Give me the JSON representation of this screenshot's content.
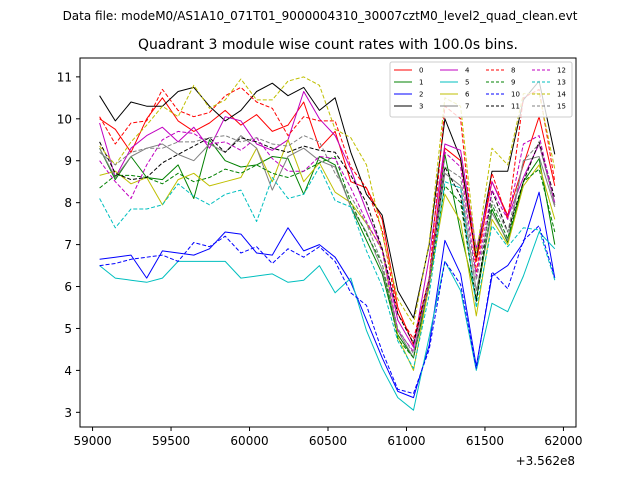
{
  "header": "Data file: modeM0/AS1A10_071T01_9000004310_30007cztM0_level2_quad_clean.evt",
  "chart_data": {
    "type": "line",
    "title": "Quadrant 3 module wise count rates with 100.0s bins.",
    "xlabel": "",
    "ylabel": "",
    "x_offset_label": "+3.562e8",
    "xlim": [
      58920,
      62080
    ],
    "ylim": [
      2.65,
      11.45
    ],
    "xticks": [
      59000,
      59500,
      60000,
      60500,
      61000,
      61500,
      62000
    ],
    "xtick_labels": [
      "59000",
      "59500",
      "60000",
      "60500",
      "61000",
      "61500",
      "62000"
    ],
    "yticks": [
      3,
      4,
      5,
      6,
      7,
      8,
      9,
      10,
      11
    ],
    "ytick_labels": [
      "3",
      "4",
      "5",
      "6",
      "7",
      "8",
      "9",
      "10",
      "11"
    ],
    "x": [
      59045,
      59145,
      59245,
      59345,
      59445,
      59545,
      59645,
      59745,
      59845,
      59945,
      60045,
      60145,
      60245,
      60345,
      60445,
      60545,
      60645,
      60745,
      60845,
      60945,
      61045,
      61145,
      61245,
      61345,
      61445,
      61545,
      61645,
      61745,
      61845,
      61945
    ],
    "legend_position": "top-right",
    "series": [
      {
        "name": "0",
        "color": "#ff0000",
        "dash": "solid",
        "values": [
          10.0,
          9.75,
          9.2,
          10.0,
          10.5,
          9.95,
          9.7,
          9.9,
          10.2,
          9.85,
          10.1,
          9.7,
          9.85,
          10.4,
          9.3,
          9.7,
          8.5,
          8.35,
          7.6,
          5.5,
          4.6,
          6.2,
          9.3,
          9.0,
          6.6,
          8.5,
          7.7,
          8.9,
          10.05,
          8.4
        ]
      },
      {
        "name": "1",
        "color": "#008000",
        "dash": "solid",
        "values": [
          9.3,
          8.55,
          9.1,
          8.6,
          8.55,
          8.9,
          8.1,
          9.5,
          9.0,
          8.85,
          8.9,
          9.1,
          9.05,
          8.2,
          9.1,
          8.9,
          7.9,
          7.1,
          6.3,
          4.85,
          4.3,
          6.0,
          9.15,
          7.3,
          5.7,
          7.85,
          7.05,
          8.5,
          9.05,
          7.0
        ]
      },
      {
        "name": "2",
        "color": "#0000ff",
        "dash": "solid",
        "values": [
          6.65,
          6.7,
          6.75,
          6.2,
          6.85,
          6.8,
          6.75,
          6.9,
          7.3,
          7.25,
          6.8,
          6.75,
          7.4,
          6.85,
          7.0,
          6.7,
          6.1,
          5.2,
          4.3,
          3.5,
          3.35,
          4.6,
          7.1,
          6.3,
          4.1,
          6.25,
          6.5,
          7.05,
          8.25,
          6.2
        ]
      },
      {
        "name": "3",
        "color": "#000000",
        "dash": "solid",
        "values": [
          10.55,
          9.95,
          10.4,
          10.3,
          10.3,
          10.65,
          10.75,
          10.3,
          9.95,
          10.2,
          10.65,
          10.85,
          10.55,
          10.75,
          10.2,
          10.5,
          9.2,
          8.2,
          7.7,
          5.9,
          5.25,
          7.0,
          10.0,
          9.05,
          6.7,
          8.75,
          8.75,
          10.45,
          10.9,
          9.15
        ]
      },
      {
        "name": "4",
        "color": "#c000c0",
        "dash": "solid",
        "values": [
          9.9,
          8.6,
          9.3,
          9.6,
          9.8,
          9.45,
          9.8,
          9.3,
          10.05,
          9.95,
          9.4,
          9.25,
          9.5,
          10.65,
          10.0,
          9.6,
          8.8,
          7.8,
          6.9,
          5.2,
          4.55,
          6.7,
          9.4,
          9.25,
          6.9,
          8.5,
          7.65,
          8.6,
          9.4,
          8.0
        ]
      },
      {
        "name": "5",
        "color": "#00bfbf",
        "dash": "solid",
        "values": [
          6.5,
          6.2,
          6.15,
          6.1,
          6.2,
          6.6,
          6.6,
          6.6,
          6.6,
          6.2,
          6.25,
          6.3,
          6.1,
          6.15,
          6.5,
          5.85,
          6.2,
          4.95,
          4.05,
          3.35,
          3.05,
          4.8,
          6.6,
          5.9,
          4.0,
          5.6,
          5.4,
          6.25,
          7.3,
          6.9
        ]
      },
      {
        "name": "6",
        "color": "#bfbf00",
        "dash": "solid",
        "values": [
          8.65,
          8.75,
          8.45,
          8.6,
          7.95,
          8.55,
          8.7,
          8.4,
          8.5,
          8.6,
          9.3,
          8.5,
          9.5,
          8.5,
          8.95,
          8.25,
          8.0,
          7.5,
          6.9,
          4.8,
          4.0,
          6.05,
          8.2,
          7.55,
          5.3,
          7.6,
          7.0,
          8.4,
          8.9,
          7.6
        ]
      },
      {
        "name": "7",
        "color": "#808080",
        "dash": "solid",
        "values": [
          9.3,
          8.6,
          9.1,
          9.3,
          9.4,
          9.15,
          9.0,
          9.4,
          9.2,
          9.6,
          9.3,
          8.3,
          9.1,
          9.3,
          9.0,
          8.85,
          7.9,
          7.3,
          6.4,
          4.95,
          4.3,
          6.15,
          8.7,
          8.4,
          5.9,
          7.75,
          7.1,
          9.0,
          9.1,
          7.9
        ]
      },
      {
        "name": "8",
        "color": "#ff0000",
        "dash": "dashed",
        "values": [
          10.05,
          9.4,
          9.9,
          9.95,
          10.7,
          10.2,
          10.05,
          10.15,
          10.55,
          10.75,
          10.4,
          10.25,
          9.6,
          10.05,
          9.95,
          9.95,
          8.85,
          8.35,
          7.35,
          5.35,
          4.75,
          6.2,
          10.3,
          10.0,
          6.35,
          8.7,
          7.6,
          10.5,
          10.7,
          8.5
        ]
      },
      {
        "name": "9",
        "color": "#008000",
        "dash": "dashed",
        "values": [
          8.35,
          8.65,
          8.65,
          8.6,
          8.45,
          8.7,
          8.5,
          8.6,
          8.8,
          8.7,
          8.9,
          8.7,
          8.6,
          8.75,
          8.95,
          9.1,
          8.0,
          7.25,
          6.55,
          4.75,
          4.3,
          6.1,
          8.4,
          8.0,
          5.65,
          7.95,
          7.15,
          8.5,
          8.8,
          7.3
        ]
      },
      {
        "name": "10",
        "color": "#0000ff",
        "dash": "dashed",
        "values": [
          6.5,
          6.55,
          6.65,
          6.7,
          6.75,
          6.6,
          7.05,
          6.95,
          7.2,
          6.8,
          6.95,
          6.55,
          6.9,
          6.7,
          6.95,
          6.6,
          5.85,
          5.55,
          4.45,
          3.55,
          3.45,
          4.5,
          6.6,
          6.05,
          4.05,
          6.35,
          5.95,
          7.1,
          7.45,
          6.2
        ]
      },
      {
        "name": "11",
        "color": "#000000",
        "dash": "dashed",
        "values": [
          9.45,
          8.7,
          8.55,
          8.6,
          8.95,
          9.15,
          9.35,
          9.55,
          9.2,
          9.55,
          9.45,
          9.3,
          9.2,
          9.35,
          9.25,
          9.2,
          8.65,
          8.0,
          6.9,
          5.35,
          4.65,
          6.15,
          8.85,
          8.15,
          5.65,
          8.3,
          7.3,
          8.5,
          9.45,
          8.1
        ]
      },
      {
        "name": "12",
        "color": "#c000c0",
        "dash": "dashed",
        "values": [
          9.0,
          8.5,
          8.1,
          8.9,
          9.5,
          9.7,
          9.65,
          9.4,
          9.45,
          9.25,
          9.55,
          9.05,
          8.75,
          8.75,
          9.1,
          9.05,
          8.35,
          7.55,
          6.85,
          4.95,
          4.45,
          6.1,
          9.2,
          8.85,
          6.25,
          8.3,
          7.6,
          9.4,
          9.6,
          7.95
        ]
      },
      {
        "name": "13",
        "color": "#00bfbf",
        "dash": "dashed",
        "values": [
          8.1,
          7.4,
          7.85,
          7.85,
          7.95,
          8.45,
          8.15,
          7.95,
          8.2,
          8.3,
          7.55,
          8.6,
          8.1,
          8.2,
          8.85,
          8.05,
          7.9,
          6.85,
          6.0,
          4.7,
          4.05,
          5.8,
          8.5,
          8.35,
          5.5,
          7.45,
          6.95,
          7.4,
          7.35,
          6.15
        ]
      },
      {
        "name": "14",
        "color": "#bfbf00",
        "dash": "dashed",
        "values": [
          9.35,
          8.9,
          9.45,
          9.85,
          10.3,
          10.05,
          10.8,
          10.25,
          10.45,
          10.95,
          10.45,
          10.45,
          10.9,
          11.0,
          10.8,
          9.75,
          9.55,
          8.9,
          7.25,
          5.7,
          5.1,
          7.05,
          10.5,
          10.3,
          6.75,
          9.3,
          8.9,
          10.6,
          10.6,
          8.8
        ]
      },
      {
        "name": "15",
        "color": "#808080",
        "dash": "dashed",
        "values": [
          9.2,
          8.9,
          9.2,
          9.3,
          9.3,
          9.45,
          9.45,
          9.55,
          9.6,
          9.45,
          9.55,
          9.4,
          9.35,
          9.6,
          9.45,
          8.7,
          8.15,
          7.5,
          6.55,
          5.0,
          4.4,
          6.2,
          8.85,
          8.6,
          6.15,
          8.05,
          7.3,
          9.0,
          9.4,
          7.95
        ]
      }
    ]
  }
}
